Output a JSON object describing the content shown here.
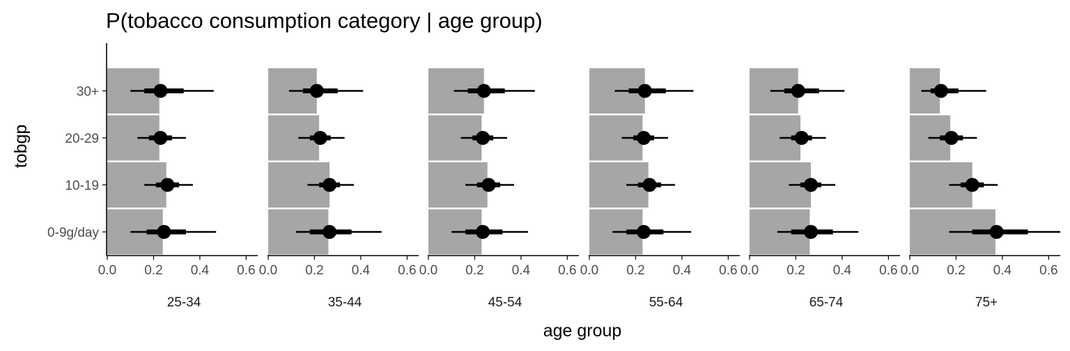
{
  "chart_data": {
    "type": "bar",
    "title": "P(tobacco consumption category | age group)",
    "xlabel": "age group",
    "ylabel": "tobgp",
    "categories": [
      "0-9g/day",
      "10-19",
      "20-29",
      "30+"
    ],
    "xlim": [
      0,
      0.65
    ],
    "x_ticks": [
      0.0,
      0.2,
      0.4,
      0.6
    ],
    "x_tick_labels": [
      "0.0",
      "0.2",
      "0.4",
      "0.6"
    ],
    "grid": false,
    "colors": {
      "bar": "#a6a6a6",
      "point": "#000000",
      "axis": "#000000"
    },
    "panels": [
      {
        "name": "25-34",
        "rows": [
          {
            "category": "0-9g/day",
            "bar": 0.24,
            "point": 0.245,
            "inner": [
              0.17,
              0.34
            ],
            "outer": [
              0.1,
              0.47
            ]
          },
          {
            "category": "10-19",
            "bar": 0.255,
            "point": 0.26,
            "inner": [
              0.21,
              0.31
            ],
            "outer": [
              0.16,
              0.37
            ]
          },
          {
            "category": "20-29",
            "bar": 0.225,
            "point": 0.23,
            "inner": [
              0.18,
              0.28
            ],
            "outer": [
              0.13,
              0.34
            ]
          },
          {
            "category": "30+",
            "bar": 0.225,
            "point": 0.23,
            "inner": [
              0.16,
              0.33
            ],
            "outer": [
              0.1,
              0.46
            ]
          }
        ]
      },
      {
        "name": "35-44",
        "rows": [
          {
            "category": "0-9g/day",
            "bar": 0.26,
            "point": 0.265,
            "inner": [
              0.18,
              0.36
            ],
            "outer": [
              0.12,
              0.49
            ]
          },
          {
            "category": "10-19",
            "bar": 0.265,
            "point": 0.265,
            "inner": [
              0.22,
              0.31
            ],
            "outer": [
              0.17,
              0.37
            ]
          },
          {
            "category": "20-29",
            "bar": 0.22,
            "point": 0.225,
            "inner": [
              0.18,
              0.27
            ],
            "outer": [
              0.13,
              0.33
            ]
          },
          {
            "category": "30+",
            "bar": 0.21,
            "point": 0.21,
            "inner": [
              0.15,
              0.3
            ],
            "outer": [
              0.09,
              0.41
            ]
          }
        ]
      },
      {
        "name": "45-54",
        "rows": [
          {
            "category": "0-9g/day",
            "bar": 0.23,
            "point": 0.235,
            "inner": [
              0.16,
              0.32
            ],
            "outer": [
              0.1,
              0.43
            ]
          },
          {
            "category": "10-19",
            "bar": 0.255,
            "point": 0.26,
            "inner": [
              0.21,
              0.31
            ],
            "outer": [
              0.16,
              0.37
            ]
          },
          {
            "category": "20-29",
            "bar": 0.23,
            "point": 0.235,
            "inner": [
              0.19,
              0.28
            ],
            "outer": [
              0.14,
              0.34
            ]
          },
          {
            "category": "30+",
            "bar": 0.24,
            "point": 0.24,
            "inner": [
              0.17,
              0.33
            ],
            "outer": [
              0.11,
              0.46
            ]
          }
        ]
      },
      {
        "name": "55-64",
        "rows": [
          {
            "category": "0-9g/day",
            "bar": 0.23,
            "point": 0.235,
            "inner": [
              0.16,
              0.32
            ],
            "outer": [
              0.1,
              0.44
            ]
          },
          {
            "category": "10-19",
            "bar": 0.255,
            "point": 0.26,
            "inner": [
              0.21,
              0.31
            ],
            "outer": [
              0.16,
              0.37
            ]
          },
          {
            "category": "20-29",
            "bar": 0.23,
            "point": 0.235,
            "inner": [
              0.19,
              0.28
            ],
            "outer": [
              0.14,
              0.34
            ]
          },
          {
            "category": "30+",
            "bar": 0.24,
            "point": 0.24,
            "inner": [
              0.17,
              0.33
            ],
            "outer": [
              0.11,
              0.45
            ]
          }
        ]
      },
      {
        "name": "65-74",
        "rows": [
          {
            "category": "0-9g/day",
            "bar": 0.26,
            "point": 0.265,
            "inner": [
              0.18,
              0.36
            ],
            "outer": [
              0.12,
              0.47
            ]
          },
          {
            "category": "10-19",
            "bar": 0.265,
            "point": 0.265,
            "inner": [
              0.22,
              0.31
            ],
            "outer": [
              0.17,
              0.37
            ]
          },
          {
            "category": "20-29",
            "bar": 0.22,
            "point": 0.225,
            "inner": [
              0.18,
              0.27
            ],
            "outer": [
              0.13,
              0.33
            ]
          },
          {
            "category": "30+",
            "bar": 0.21,
            "point": 0.21,
            "inner": [
              0.15,
              0.3
            ],
            "outer": [
              0.09,
              0.41
            ]
          }
        ]
      },
      {
        "name": "75+",
        "rows": [
          {
            "category": "0-9g/day",
            "bar": 0.37,
            "point": 0.375,
            "inner": [
              0.27,
              0.51
            ],
            "outer": [
              0.17,
              0.65
            ]
          },
          {
            "category": "10-19",
            "bar": 0.27,
            "point": 0.27,
            "inner": [
              0.22,
              0.32
            ],
            "outer": [
              0.17,
              0.38
            ]
          },
          {
            "category": "20-29",
            "bar": 0.175,
            "point": 0.18,
            "inner": [
              0.13,
              0.23
            ],
            "outer": [
              0.08,
              0.29
            ]
          },
          {
            "category": "30+",
            "bar": 0.13,
            "point": 0.135,
            "inner": [
              0.09,
              0.21
            ],
            "outer": [
              0.05,
              0.33
            ]
          }
        ]
      }
    ],
    "last_panel_tick_labels": [
      "0.0",
      "0.2",
      "0.4",
      "0.6"
    ]
  }
}
